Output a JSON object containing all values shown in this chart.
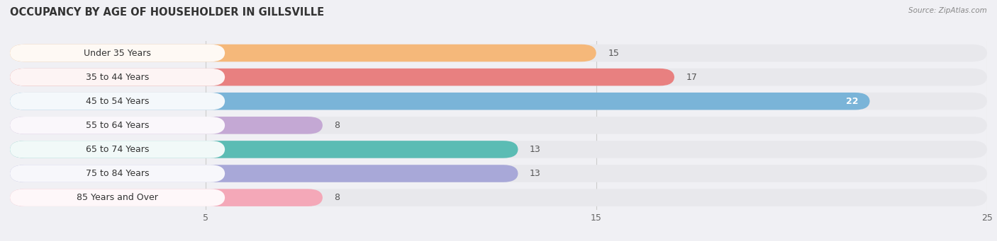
{
  "title": "OCCUPANCY BY AGE OF HOUSEHOLDER IN GILLSVILLE",
  "source": "Source: ZipAtlas.com",
  "categories": [
    "Under 35 Years",
    "35 to 44 Years",
    "45 to 54 Years",
    "55 to 64 Years",
    "65 to 74 Years",
    "75 to 84 Years",
    "85 Years and Over"
  ],
  "values": [
    15,
    17,
    22,
    8,
    13,
    13,
    8
  ],
  "bar_colors": [
    "#f5b87a",
    "#e88080",
    "#7ab4d8",
    "#c4a8d4",
    "#5bbcb4",
    "#a8a8d8",
    "#f4a8b8"
  ],
  "bar_bg_color": "#e8e8ec",
  "xlim": [
    0,
    25
  ],
  "xticks": [
    5,
    15,
    25
  ],
  "title_fontsize": 10.5,
  "label_fontsize": 9,
  "value_fontsize": 9,
  "background_color": "#f0f0f4",
  "grid_color": "#cccccc",
  "plot_bg_color": "#f0f0f4"
}
